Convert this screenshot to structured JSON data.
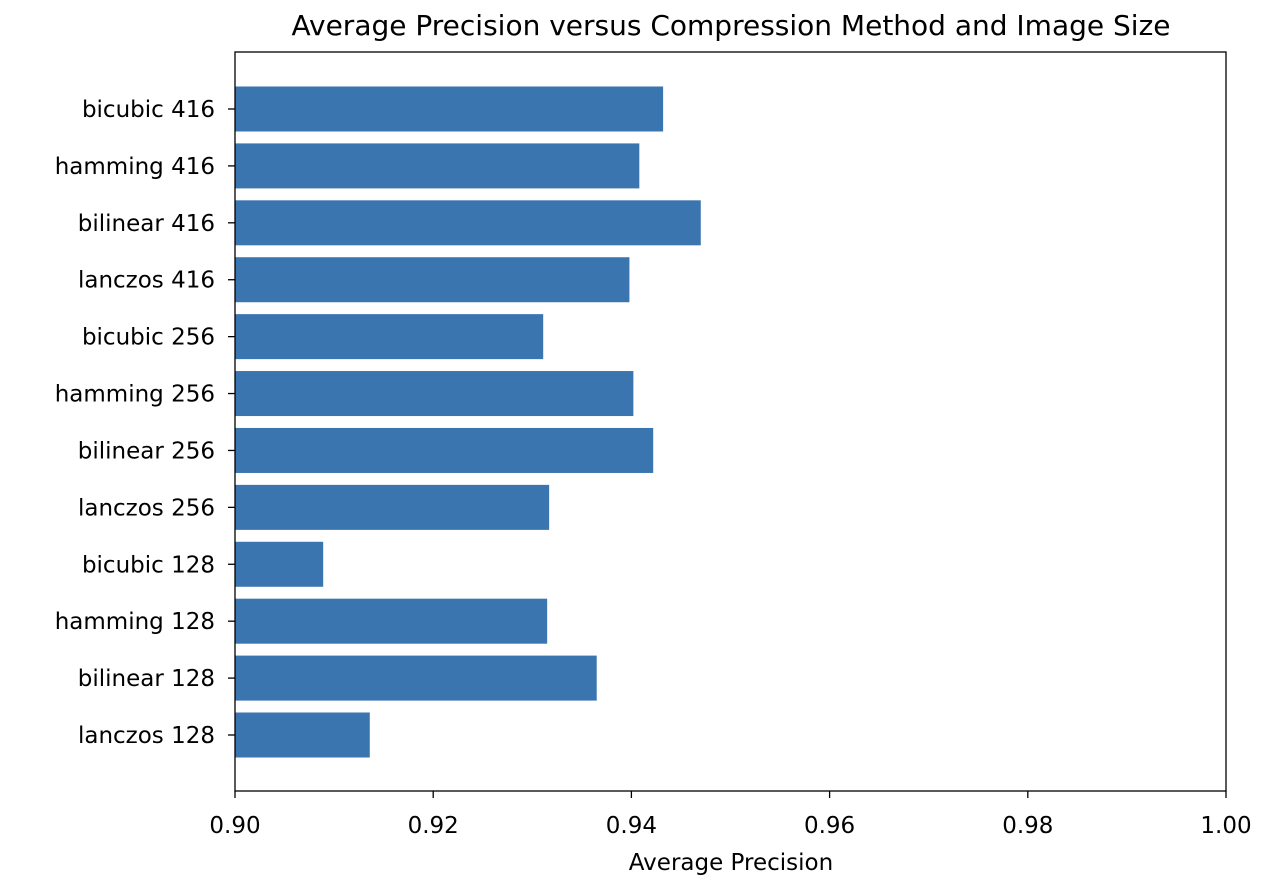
{
  "chart_data": {
    "type": "bar",
    "orientation": "horizontal",
    "title": "Average Precision versus Compression Method and Image Size",
    "xlabel": "Average Precision",
    "ylabel": "",
    "xlim": [
      0.9,
      1.0
    ],
    "xticks": [
      "0.90",
      "0.92",
      "0.94",
      "0.96",
      "0.98",
      "1.00"
    ],
    "grid": false,
    "bar_color": "#3a75af",
    "categories": [
      "bicubic 416",
      "hamming 416",
      "bilinear 416",
      "lanczos 416",
      "bicubic 256",
      "hamming 256",
      "bilinear 256",
      "lanczos 256",
      "bicubic 128",
      "hamming 128",
      "bilinear 128",
      "lanczos 128"
    ],
    "values": [
      0.9432,
      0.9408,
      0.947,
      0.9398,
      0.9311,
      0.9402,
      0.9422,
      0.9317,
      0.9089,
      0.9315,
      0.9365,
      0.9136
    ]
  }
}
